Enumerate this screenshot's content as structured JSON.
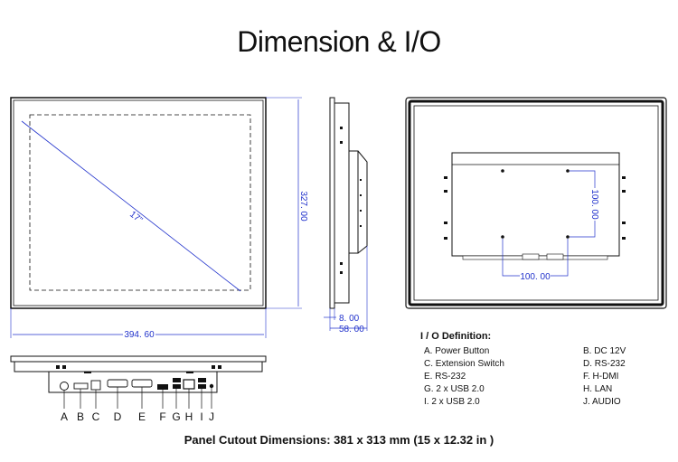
{
  "title": "Dimension & I/O",
  "front_view": {
    "diagonal_label": "17\"",
    "width_label": "394. 60",
    "height_label": "327. 00"
  },
  "side_view": {
    "depth_label_1": "8. 00",
    "depth_label_2": "58. 00"
  },
  "rear_view": {
    "vesa_horizontal": "100. 00",
    "vesa_vertical": "100. 00"
  },
  "port_letters": [
    "A",
    "B",
    "C",
    "D",
    "E",
    "F",
    "G",
    "H",
    "I",
    "J"
  ],
  "io_definition": {
    "heading": "I / O Definition:",
    "rows": [
      {
        "left": "A. Power Button",
        "right": "B. DC 12V"
      },
      {
        "left": "C. Extension Switch",
        "right": "D. RS-232"
      },
      {
        "left": "E. RS-232",
        "right": "F. H-DMI"
      },
      {
        "left": "G. 2 x USB 2.0",
        "right": "H. LAN"
      },
      {
        "left": " I. 2 x USB 2.0",
        "right": " J. AUDIO"
      }
    ]
  },
  "cutout_text": "Panel Cutout Dimensions: 381 x 313 mm (15 x 12.32 in )",
  "colors": {
    "dimension": "#2233cc",
    "line": "#111111"
  }
}
